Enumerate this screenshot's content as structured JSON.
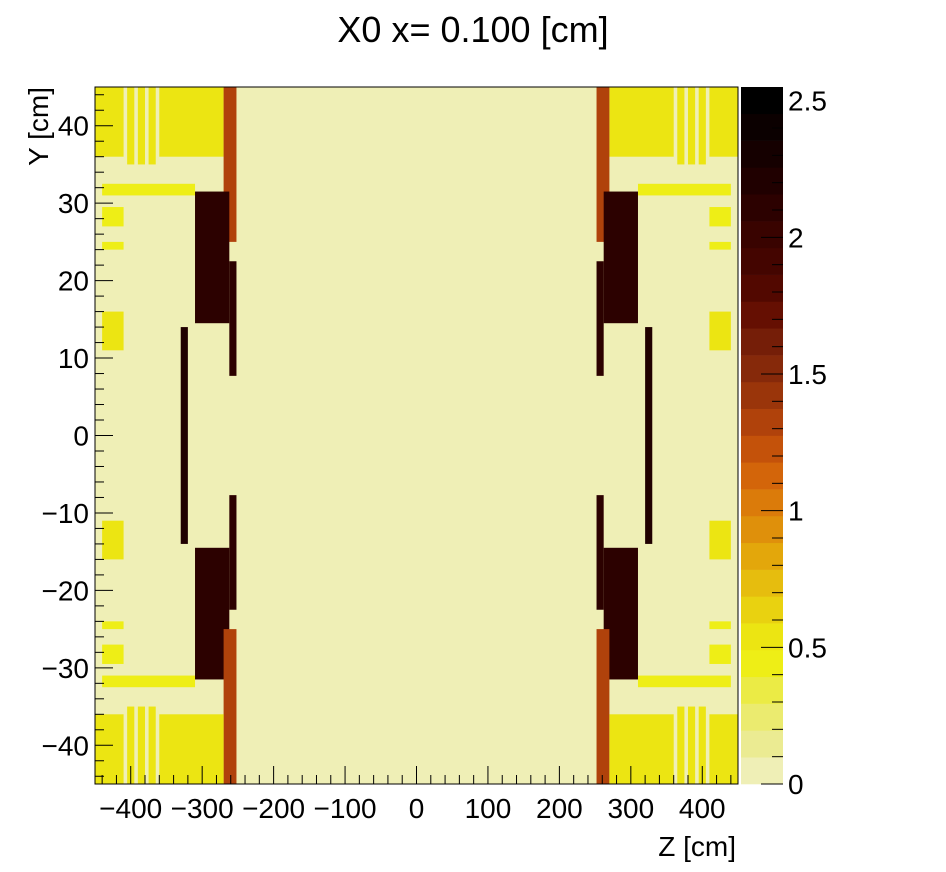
{
  "chart_data": {
    "type": "heatmap",
    "title": "X0 x=  0.100 [cm]",
    "xlabel": "Z [cm]",
    "ylabel": "Y [cm]",
    "xlim": [
      -450,
      450
    ],
    "ylim": [
      -45,
      45
    ],
    "zlim": [
      0,
      2.55
    ],
    "x_ticks": [
      -400,
      -300,
      -200,
      -100,
      0,
      100,
      200,
      300,
      400
    ],
    "x_tick_labels": [
      "−400",
      "−300",
      "−200",
      "−100",
      "0",
      "100",
      "200",
      "300",
      "400"
    ],
    "y_ticks": [
      -40,
      -30,
      -20,
      -10,
      0,
      10,
      20,
      30,
      40
    ],
    "y_tick_labels": [
      "−40",
      "−30",
      "−20",
      "−10",
      "0",
      "10",
      "20",
      "30",
      "40"
    ],
    "z_ticks": [
      0,
      0.5,
      1,
      1.5,
      2,
      2.5
    ],
    "z_tick_labels": [
      "0",
      "0.5",
      "1",
      "1.5",
      "2",
      "2.5"
    ],
    "background_value": 0.05,
    "colors": {
      "palette": [
        "#efefb6",
        "#ebeb92",
        "#ebeb6f",
        "#ebeb45",
        "#eeee16",
        "#ece512",
        "#e9d210",
        "#e6bd0e",
        "#e3a70b",
        "#df900b",
        "#db7b0a",
        "#d3650a",
        "#c4520a",
        "#b0420b",
        "#9a350a",
        "#86290a",
        "#751e08",
        "#650f02",
        "#520800",
        "#440500",
        "#390300",
        "#2c0100",
        "#200000",
        "#150000",
        "#0b0000",
        "#000000"
      ]
    },
    "regions": [
      {
        "z": [
          -450,
          -410
        ],
        "y": [
          36,
          45
        ],
        "value": 0.5
      },
      {
        "z": [
          -405,
          -395
        ],
        "y": [
          35,
          45
        ],
        "value": 0.5
      },
      {
        "z": [
          -390,
          -380
        ],
        "y": [
          35,
          45
        ],
        "value": 0.5
      },
      {
        "z": [
          -375,
          -365
        ],
        "y": [
          35,
          45
        ],
        "value": 0.5
      },
      {
        "z": [
          -360,
          -270
        ],
        "y": [
          36,
          45
        ],
        "value": 0.55
      },
      {
        "z": [
          -270,
          -252
        ],
        "y": [
          25,
          45
        ],
        "value": 1.3
      },
      {
        "z": [
          -440,
          -310
        ],
        "y": [
          31,
          32.5
        ],
        "value": 0.45
      },
      {
        "z": [
          -440,
          -410
        ],
        "y": [
          27,
          29.5
        ],
        "value": 0.45
      },
      {
        "z": [
          -440,
          -410
        ],
        "y": [
          24,
          25
        ],
        "value": 0.45
      },
      {
        "z": [
          -440,
          -410
        ],
        "y": [
          11,
          16
        ],
        "value": 0.5
      },
      {
        "z": [
          -310,
          -262
        ],
        "y": [
          14.5,
          31.5
        ],
        "value": 2.15
      },
      {
        "z": [
          -330,
          -320
        ],
        "y": [
          -14,
          14
        ],
        "value": 2.2
      },
      {
        "z": [
          -262,
          -252
        ],
        "y": [
          7.7,
          22.5
        ],
        "value": 2.1
      },
      {
        "z": [
          -440,
          -410
        ],
        "y": [
          -16,
          -11
        ],
        "value": 0.5
      },
      {
        "z": [
          -440,
          -410
        ],
        "y": [
          -25,
          -24
        ],
        "value": 0.45
      },
      {
        "z": [
          -440,
          -410
        ],
        "y": [
          -29.5,
          -27
        ],
        "value": 0.45
      },
      {
        "z": [
          -440,
          -310
        ],
        "y": [
          -32.5,
          -31
        ],
        "value": 0.45
      },
      {
        "z": [
          -310,
          -262
        ],
        "y": [
          -31.5,
          -14.5
        ],
        "value": 2.15
      },
      {
        "z": [
          -262,
          -252
        ],
        "y": [
          -22.5,
          -7.7
        ],
        "value": 2.1
      },
      {
        "z": [
          -270,
          -252
        ],
        "y": [
          -45,
          -25
        ],
        "value": 1.3
      },
      {
        "z": [
          -360,
          -270
        ],
        "y": [
          -45,
          -36
        ],
        "value": 0.55
      },
      {
        "z": [
          -405,
          -395
        ],
        "y": [
          -45,
          -35
        ],
        "value": 0.5
      },
      {
        "z": [
          -390,
          -380
        ],
        "y": [
          -45,
          -35
        ],
        "value": 0.5
      },
      {
        "z": [
          -375,
          -365
        ],
        "y": [
          -45,
          -35
        ],
        "value": 0.5
      },
      {
        "z": [
          -450,
          -410
        ],
        "y": [
          -45,
          -36
        ],
        "value": 0.5
      },
      {
        "z": [
          410,
          450
        ],
        "y": [
          36,
          45
        ],
        "value": 0.5
      },
      {
        "z": [
          395,
          405
        ],
        "y": [
          35,
          45
        ],
        "value": 0.5
      },
      {
        "z": [
          380,
          390
        ],
        "y": [
          35,
          45
        ],
        "value": 0.5
      },
      {
        "z": [
          365,
          375
        ],
        "y": [
          35,
          45
        ],
        "value": 0.5
      },
      {
        "z": [
          270,
          360
        ],
        "y": [
          36,
          45
        ],
        "value": 0.55
      },
      {
        "z": [
          252,
          270
        ],
        "y": [
          25,
          45
        ],
        "value": 1.3
      },
      {
        "z": [
          310,
          440
        ],
        "y": [
          31,
          32.5
        ],
        "value": 0.45
      },
      {
        "z": [
          410,
          440
        ],
        "y": [
          27,
          29.5
        ],
        "value": 0.45
      },
      {
        "z": [
          410,
          440
        ],
        "y": [
          24,
          25
        ],
        "value": 0.45
      },
      {
        "z": [
          410,
          440
        ],
        "y": [
          11,
          16
        ],
        "value": 0.5
      },
      {
        "z": [
          262,
          310
        ],
        "y": [
          14.5,
          31.5
        ],
        "value": 2.15
      },
      {
        "z": [
          320,
          330
        ],
        "y": [
          -14,
          14
        ],
        "value": 2.2
      },
      {
        "z": [
          252,
          262
        ],
        "y": [
          7.7,
          22.5
        ],
        "value": 2.1
      },
      {
        "z": [
          410,
          440
        ],
        "y": [
          -16,
          -11
        ],
        "value": 0.5
      },
      {
        "z": [
          410,
          440
        ],
        "y": [
          -25,
          -24
        ],
        "value": 0.45
      },
      {
        "z": [
          410,
          440
        ],
        "y": [
          -29.5,
          -27
        ],
        "value": 0.45
      },
      {
        "z": [
          310,
          440
        ],
        "y": [
          -32.5,
          -31
        ],
        "value": 0.45
      },
      {
        "z": [
          262,
          310
        ],
        "y": [
          -31.5,
          -14.5
        ],
        "value": 2.15
      },
      {
        "z": [
          252,
          262
        ],
        "y": [
          -22.5,
          -7.7
        ],
        "value": 2.1
      },
      {
        "z": [
          252,
          270
        ],
        "y": [
          -45,
          -25
        ],
        "value": 1.3
      },
      {
        "z": [
          270,
          360
        ],
        "y": [
          -45,
          -36
        ],
        "value": 0.55
      },
      {
        "z": [
          395,
          405
        ],
        "y": [
          -45,
          -35
        ],
        "value": 0.5
      },
      {
        "z": [
          380,
          390
        ],
        "y": [
          -45,
          -35
        ],
        "value": 0.5
      },
      {
        "z": [
          365,
          375
        ],
        "y": [
          -45,
          -35
        ],
        "value": 0.5
      },
      {
        "z": [
          410,
          450
        ],
        "y": [
          -45,
          -36
        ],
        "value": 0.5
      }
    ]
  }
}
